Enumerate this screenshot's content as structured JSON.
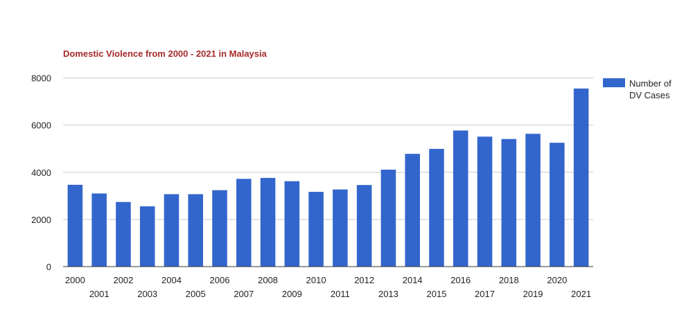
{
  "chart_data": {
    "type": "bar",
    "title": "Domestic Violence from 2000 - 2021 in Malaysia",
    "xlabel": "",
    "ylabel": "",
    "ylim": [
      0,
      8000
    ],
    "yticks": [
      "0",
      "2000",
      "4000",
      "6000",
      "8000"
    ],
    "grid": true,
    "legend_position": "right",
    "categories": [
      "2000",
      "2001",
      "2002",
      "2003",
      "2004",
      "2005",
      "2006",
      "2007",
      "2008",
      "2009",
      "2010",
      "2011",
      "2012",
      "2013",
      "2014",
      "2015",
      "2016",
      "2017",
      "2018",
      "2019",
      "2020",
      "2021"
    ],
    "series": [
      {
        "name": "Number of DV Cases",
        "color": "#3366cc",
        "values": [
          3468,
          3100,
          2740,
          2555,
          3070,
          3070,
          3240,
          3720,
          3760,
          3620,
          3170,
          3270,
          3460,
          4110,
          4780,
          4990,
          5770,
          5510,
          5410,
          5630,
          5250,
          7550
        ]
      }
    ]
  }
}
